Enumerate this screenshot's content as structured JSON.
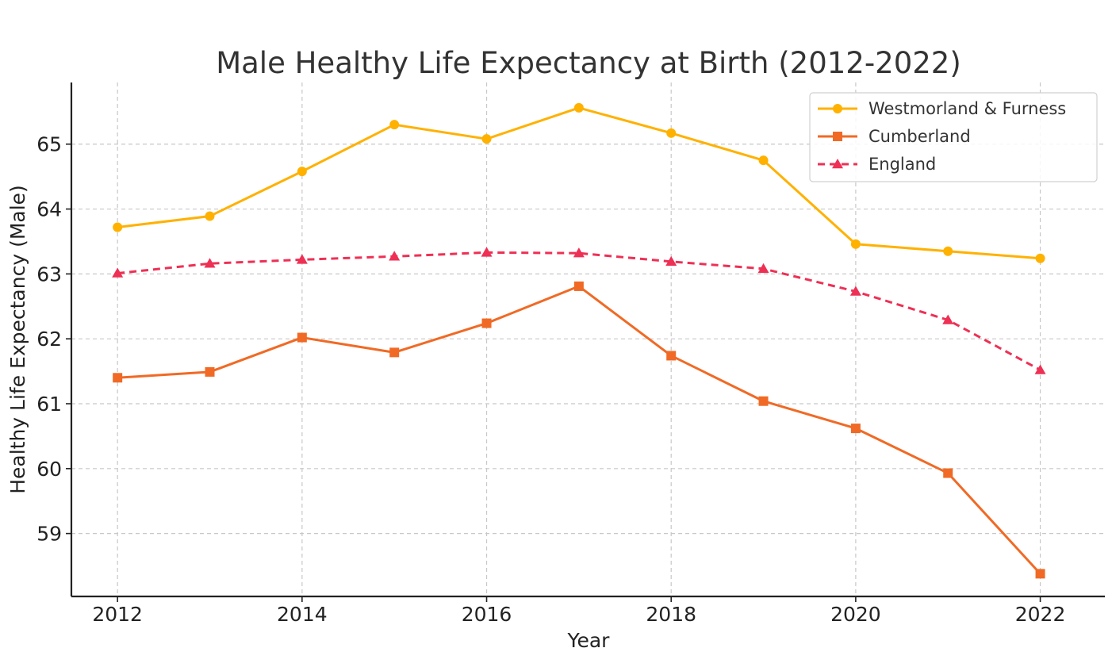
{
  "chart_data": {
    "type": "line",
    "title": "Male Healthy Life Expectancy at Birth (2012-2022)",
    "xlabel": "Year",
    "ylabel": "Healthy Life Expectancy (Male)",
    "x": [
      2012,
      2013,
      2014,
      2015,
      2016,
      2017,
      2018,
      2019,
      2020,
      2021,
      2022
    ],
    "xlim": [
      2011.5,
      2022.7
    ],
    "ylim": [
      58.03,
      65.95
    ],
    "x_ticks": [
      2012,
      2014,
      2016,
      2018,
      2020,
      2022
    ],
    "y_ticks": [
      59,
      60,
      61,
      62,
      63,
      64,
      65
    ],
    "grid": true,
    "legend_position": "top-right",
    "series": [
      {
        "name": "Westmorland & Furness",
        "color": "#FFB100",
        "marker": "circle",
        "line_style": "solid",
        "values": [
          63.72,
          63.89,
          64.58,
          65.3,
          65.08,
          65.56,
          65.17,
          64.75,
          63.46,
          63.35,
          63.24
        ]
      },
      {
        "name": "Cumberland",
        "color": "#F06A25",
        "marker": "square",
        "line_style": "solid",
        "values": [
          61.4,
          61.49,
          62.02,
          61.79,
          62.24,
          62.81,
          61.74,
          61.04,
          60.62,
          59.93,
          58.38
        ]
      },
      {
        "name": "England",
        "color": "#EE3055",
        "marker": "triangle",
        "line_style": "dashed",
        "values": [
          63.01,
          63.16,
          63.22,
          63.27,
          63.33,
          63.32,
          63.19,
          63.08,
          62.73,
          62.29,
          61.52
        ]
      }
    ]
  }
}
